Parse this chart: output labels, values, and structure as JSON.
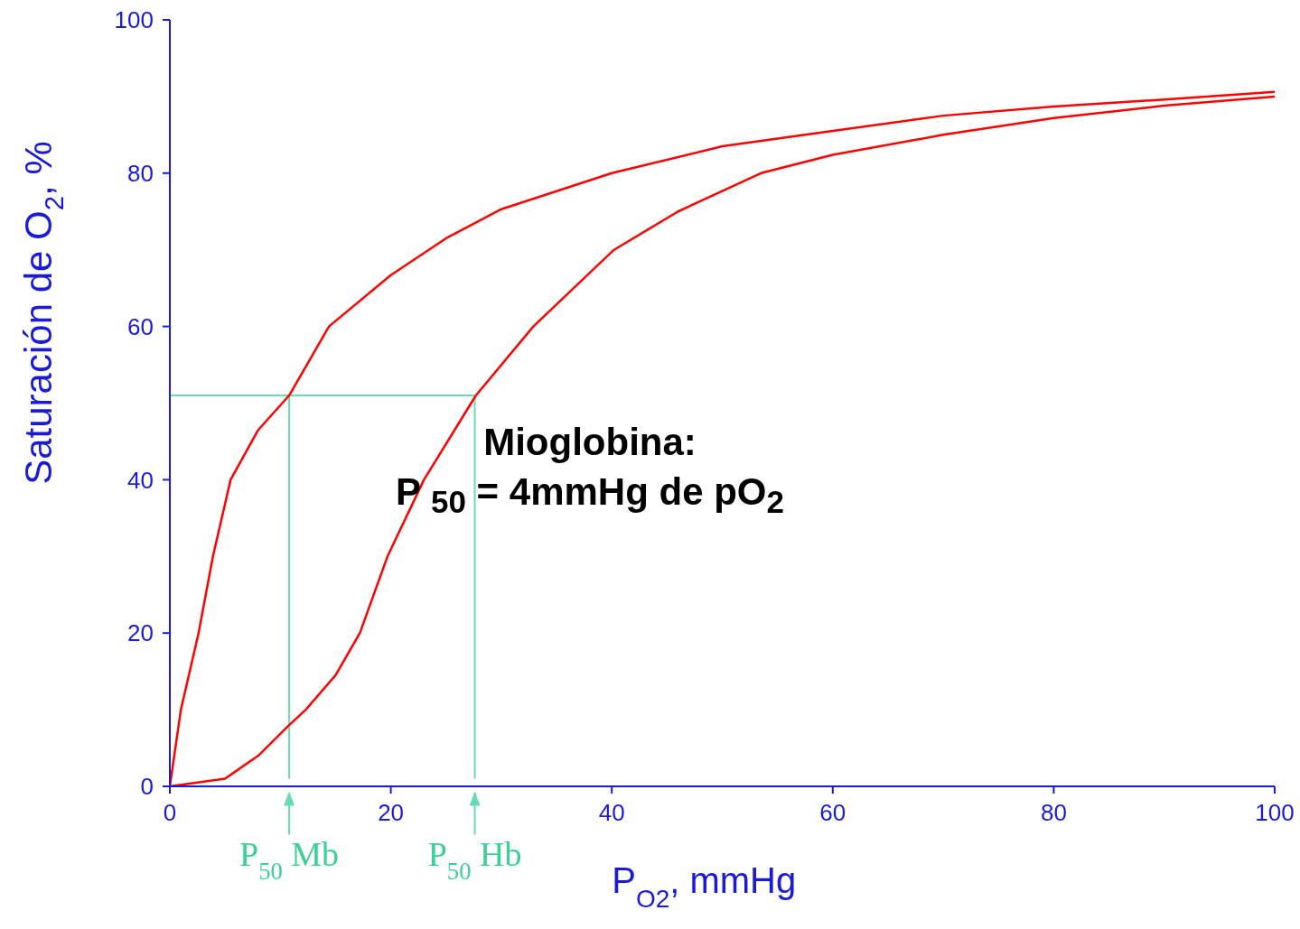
{
  "chart_data": {
    "type": "line",
    "xlabel": "P$_{O2}$, mmHg",
    "ylabel": "Saturación de O$_{2}$, %",
    "xlim": [
      0,
      100
    ],
    "ylim": [
      0,
      100
    ],
    "xticks": [
      0,
      20,
      40,
      60,
      80,
      100
    ],
    "yticks": [
      0,
      20,
      40,
      60,
      80,
      100
    ],
    "grid": false,
    "legend": false,
    "marker": "none",
    "line_style": "solid",
    "series": [
      {
        "color": "#ff0000",
        "x": [
          0,
          1,
          2.6,
          3.9,
          5.5,
          8,
          10.8,
          14.4,
          20,
          25,
          30,
          40,
          50,
          60,
          70,
          80,
          90,
          100
        ],
        "values": [
          0,
          10,
          20,
          30,
          40,
          46.5,
          51,
          60,
          66.7,
          71.5,
          75.3,
          80,
          83.5,
          85.5,
          87.5,
          88.7,
          89.6,
          90.6
        ]
      },
      {
        "color": "#ff0000",
        "x": [
          0,
          5,
          8,
          10.8,
          12.3,
          15,
          17.2,
          19.7,
          23,
          27.7,
          32.9,
          40.2,
          46,
          53.5,
          60,
          70,
          80,
          90,
          100
        ],
        "values": [
          0,
          1,
          4,
          8,
          10,
          14.5,
          20,
          30,
          40,
          51,
          60,
          70,
          75,
          80,
          82.4,
          85,
          87.2,
          88.8,
          90
        ]
      }
    ],
    "ref_lines": [
      {
        "axis": "y",
        "value": 51,
        "label": null,
        "color": "#66ddb0"
      },
      {
        "axis": "x",
        "value": 10.8,
        "label": "P$_{50}$ Mb",
        "color": "#66ddb0"
      },
      {
        "axis": "x",
        "value": 27.6,
        "label": "P$_{50}$ Hb",
        "color": "#66ddb0"
      }
    ],
    "annotations": [
      "Mioglobina:\nP $_{50}$ = 4mmHg de pO$_{2}$"
    ]
  }
}
